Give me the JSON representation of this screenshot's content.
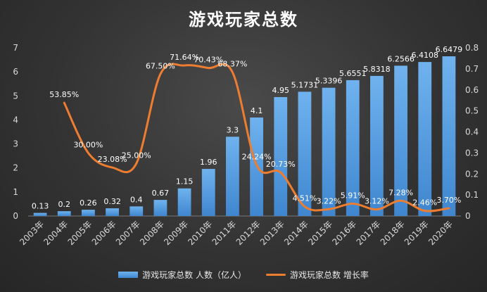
{
  "chart_data": {
    "type": "bar+line",
    "title": "游戏玩家总数",
    "categories": [
      "2003年",
      "2004年",
      "2005年",
      "2006年",
      "2007年",
      "2008年",
      "2009年",
      "2010年",
      "2011年",
      "2012年",
      "2013年",
      "2014年",
      "2015年",
      "2016年",
      "2017年",
      "2018年",
      "2019年",
      "2020年"
    ],
    "series": [
      {
        "name": "游戏玩家总数 人数（亿人）",
        "type": "bar",
        "axis": "left",
        "values": [
          0.13,
          0.2,
          0.26,
          0.32,
          0.4,
          0.67,
          1.15,
          1.96,
          3.3,
          4.1,
          4.95,
          5.1731,
          5.3396,
          5.6551,
          5.8318,
          6.2566,
          6.4108,
          6.6479
        ],
        "labels": [
          "0.13",
          "0.2",
          "0.26",
          "0.32",
          "0.4",
          "0.67",
          "1.15",
          "1.96",
          "3.3",
          "4.1",
          "4.95",
          "5.1731",
          "5.3396",
          "5.6551",
          "5.8318",
          "6.2566",
          "6.4108",
          "6.6479"
        ]
      },
      {
        "name": "游戏玩家总数 增长率",
        "type": "line",
        "axis": "right",
        "values": [
          null,
          0.5385,
          0.3,
          0.2308,
          0.25,
          0.675,
          0.7164,
          0.7043,
          0.6837,
          0.2424,
          0.2073,
          0.0451,
          0.0322,
          0.0591,
          0.0312,
          0.0728,
          0.0246,
          0.037
        ],
        "labels": [
          "",
          "53.85%",
          "30.00%",
          "23.08%",
          "25.00%",
          "67.50%",
          "71.64%",
          "70.43%",
          "68.37%",
          "24.24%",
          "20.73%",
          "4.51%",
          "3.22%",
          "5.91%",
          "3.12%",
          "7.28%",
          "2.46%",
          "3.70%"
        ]
      }
    ],
    "y_left": {
      "min": 0,
      "max": 7,
      "ticks": [
        "0",
        "1",
        "2",
        "3",
        "4",
        "5",
        "6",
        "7"
      ]
    },
    "y_right": {
      "min": 0,
      "max": 0.8,
      "ticks": [
        "0",
        "0.1",
        "0.2",
        "0.3",
        "0.4",
        "0.5",
        "0.6",
        "0.7",
        "0.8"
      ]
    },
    "legend_position": "bottom",
    "grid": false,
    "colors": {
      "bar_top": "#6fb2ee",
      "bar_bottom": "#3f86cf",
      "line": "#ed7d31"
    }
  }
}
